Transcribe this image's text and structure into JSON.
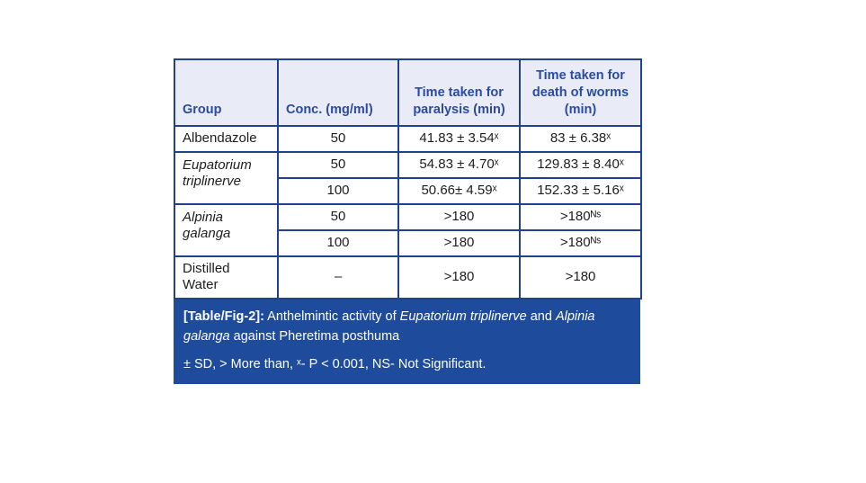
{
  "table": {
    "headers": [
      "Group",
      "Conc. (mg/ml)",
      "Time taken for paralysis (min)",
      "Time taken for death of worms (min)"
    ],
    "rows": [
      {
        "group": "Albendazole",
        "conc": "50",
        "paralysis": "41.83 ± 3.54ˣ",
        "death": "83 ± 6.38ˣ"
      },
      {
        "group": "Eupatorium triplinerve",
        "conc": "50",
        "paralysis": "54.83 ± 4.70ˣ",
        "death": "129.83 ± 8.40ˣ"
      },
      {
        "conc": "100",
        "paralysis": "50.66± 4.59ˣ",
        "death": "152.33 ± 5.16ˣ"
      },
      {
        "group": "Alpinia galanga",
        "conc": "50",
        "paralysis": ">180",
        "death": ">180�    "
      },
      {
        "conc": "100",
        "paralysis": ">180",
        "death": ">180ᴺˢ"
      },
      {
        "group": "Distilled Water",
        "conc": "–",
        "paralysis": ">180",
        "death": ">180"
      }
    ],
    "death_ns_row3": ">180ᴺˢ",
    "death_ns_row4": ">180ᴺˢ"
  },
  "caption": {
    "line1": {
      "prefix": "[Table/Fig-2]:",
      "s1": " Anthelmintic activity of ",
      "s2": "Eupatorium triplinerve",
      "s3": " and ",
      "s4": "Alpinia galanga",
      "s5": " against Pheretima posthuma"
    },
    "line2": "± SD, > More than, ˣ- P < 0.001, NS- Not Significant."
  }
}
